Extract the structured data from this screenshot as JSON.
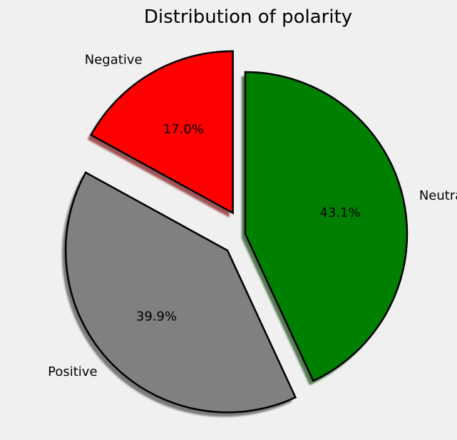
{
  "chart_data": {
    "type": "pie",
    "title": "Distribution of polarity",
    "categories": [
      "Negative",
      "Positive",
      "Neutral"
    ],
    "values": [
      17.0,
      39.9,
      43.1
    ],
    "value_labels": [
      "17.0%",
      "39.9%",
      "43.1%"
    ],
    "colors": [
      "#ff0000",
      "#808080",
      "#008000"
    ],
    "exploded": [
      true,
      true,
      false
    ],
    "shadow": true,
    "edge_color": "#000000"
  }
}
